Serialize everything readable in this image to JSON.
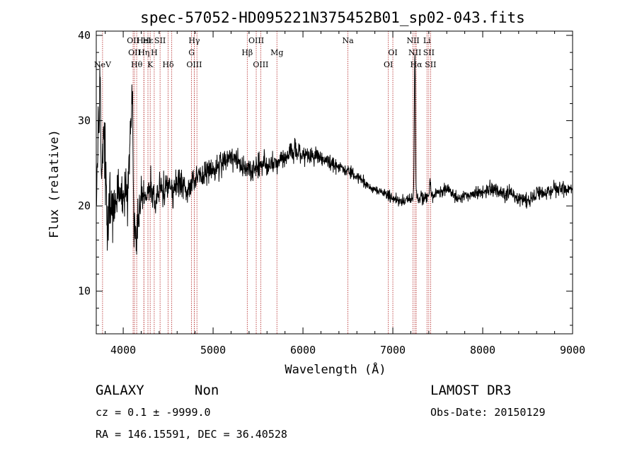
{
  "chart_data": {
    "type": "line",
    "title": "spec-57052-HD095221N375452B01_sp02-043.fits",
    "xlabel": "Wavelength (Å)",
    "ylabel": "Flux (relative)",
    "xlim": [
      3700,
      9000
    ],
    "ylim": [
      5,
      40.5
    ],
    "xticks": [
      4000,
      5000,
      6000,
      7000,
      8000,
      9000
    ],
    "yticks": [
      10,
      20,
      30,
      40
    ],
    "spectrum_anchors": [
      [
        3700,
        22
      ],
      [
        3740,
        34
      ],
      [
        3760,
        24
      ],
      [
        3790,
        30
      ],
      [
        3820,
        18
      ],
      [
        3860,
        21
      ],
      [
        3900,
        20
      ],
      [
        3950,
        22
      ],
      [
        4000,
        22
      ],
      [
        4050,
        21
      ],
      [
        4102,
        34
      ],
      [
        4110,
        16
      ],
      [
        4150,
        17
      ],
      [
        4200,
        21
      ],
      [
        4250,
        21
      ],
      [
        4300,
        22
      ],
      [
        4350,
        21
      ],
      [
        4400,
        22
      ],
      [
        4500,
        22
      ],
      [
        4600,
        22.5
      ],
      [
        4700,
        22
      ],
      [
        4800,
        23
      ],
      [
        4900,
        24
      ],
      [
        5000,
        24
      ],
      [
        5100,
        25
      ],
      [
        5200,
        25.5
      ],
      [
        5300,
        25
      ],
      [
        5400,
        24
      ],
      [
        5500,
        24.5
      ],
      [
        5600,
        25
      ],
      [
        5700,
        25
      ],
      [
        5800,
        25.5
      ],
      [
        5900,
        26.5
      ],
      [
        6000,
        26
      ],
      [
        6100,
        26
      ],
      [
        6200,
        25.5
      ],
      [
        6300,
        25
      ],
      [
        6400,
        24.5
      ],
      [
        6500,
        24
      ],
      [
        6600,
        23.5
      ],
      [
        6700,
        22.5
      ],
      [
        6800,
        22
      ],
      [
        6900,
        21.5
      ],
      [
        7000,
        21
      ],
      [
        7100,
        20.5
      ],
      [
        7200,
        21
      ],
      [
        7300,
        21
      ],
      [
        7400,
        21
      ],
      [
        7500,
        21.5
      ],
      [
        7600,
        22
      ],
      [
        7700,
        21
      ],
      [
        7800,
        21
      ],
      [
        7900,
        21.5
      ],
      [
        8000,
        21.5
      ],
      [
        8100,
        22
      ],
      [
        8200,
        21.5
      ],
      [
        8300,
        21.5
      ],
      [
        8400,
        21
      ],
      [
        8500,
        20.5
      ],
      [
        8600,
        21.5
      ],
      [
        8700,
        21.5
      ],
      [
        8800,
        22
      ],
      [
        8900,
        22
      ],
      [
        9000,
        22
      ]
    ],
    "emission_peaks": [
      {
        "wavelength": 4102,
        "peak": 34
      },
      {
        "wavelength": 7245,
        "peak": 37.5
      },
      {
        "wavelength": 7415,
        "peak": 23
      }
    ],
    "noise_scale": [
      [
        3700,
        6
      ],
      [
        3900,
        4
      ],
      [
        4300,
        2.8
      ],
      [
        5000,
        1.8
      ],
      [
        6000,
        1.6
      ],
      [
        6500,
        0.9
      ],
      [
        7000,
        0.8
      ],
      [
        8000,
        1.0
      ],
      [
        9000,
        1.2
      ]
    ],
    "spectral_lines": [
      {
        "wavelength": 3770,
        "label": "NeV",
        "row": 3
      },
      {
        "wavelength": 4110,
        "label": "OII",
        "row": 1
      },
      {
        "wavelength": 4125,
        "label": "OII",
        "row": 2
      },
      {
        "wavelength": 4150,
        "label": "Hθ",
        "row": 3
      },
      {
        "wavelength": 4230,
        "label": "HeI",
        "row": 1
      },
      {
        "wavelength": 4230,
        "label": "Hη",
        "row": 2
      },
      {
        "wavelength": 4275,
        "label": "Hε",
        "row": 1
      },
      {
        "wavelength": 4300,
        "label": "K",
        "row": 3
      },
      {
        "wavelength": 4345,
        "label": "H",
        "row": 2
      },
      {
        "wavelength": 4410,
        "label": "SII",
        "row": 1
      },
      {
        "wavelength": 4500,
        "label": "Hδ",
        "row": 3
      },
      {
        "wavelength": 4540,
        "label": "",
        "row": 0
      },
      {
        "wavelength": 4760,
        "label": "G",
        "row": 2
      },
      {
        "wavelength": 4790,
        "label": "Hγ",
        "row": 1
      },
      {
        "wavelength": 4790,
        "label": "OIII",
        "row": 3
      },
      {
        "wavelength": 4820,
        "label": "",
        "row": 0
      },
      {
        "wavelength": 5380,
        "label": "Hβ",
        "row": 2
      },
      {
        "wavelength": 5480,
        "label": "OIII",
        "row": 1
      },
      {
        "wavelength": 5530,
        "label": "OIII",
        "row": 3
      },
      {
        "wavelength": 5710,
        "label": "Mg",
        "row": 2
      },
      {
        "wavelength": 6500,
        "label": "Na",
        "row": 1
      },
      {
        "wavelength": 6950,
        "label": "OI",
        "row": 3
      },
      {
        "wavelength": 7000,
        "label": "OI",
        "row": 2
      },
      {
        "wavelength": 7225,
        "label": "NII",
        "row": 1
      },
      {
        "wavelength": 7245,
        "label": "NII",
        "row": 2
      },
      {
        "wavelength": 7260,
        "label": "Hα",
        "row": 3
      },
      {
        "wavelength": 7380,
        "label": "Li",
        "row": 1
      },
      {
        "wavelength": 7400,
        "label": "SII",
        "row": 2
      },
      {
        "wavelength": 7420,
        "label": "SII",
        "row": 3
      }
    ]
  },
  "info": {
    "class_label": "GALAXY",
    "subclass_label": "Non",
    "survey_label": "LAMOST DR3",
    "cz_text": "cz = 0.1 ± -9999.0",
    "obs_date_text": "Obs-Date: 20150129",
    "radec_text": "RA = 146.15591, DEC =  36.40528"
  },
  "colors": {
    "spectrum": "#000000",
    "line_marker": "#b22222",
    "axes": "#000000",
    "background": "#ffffff"
  }
}
